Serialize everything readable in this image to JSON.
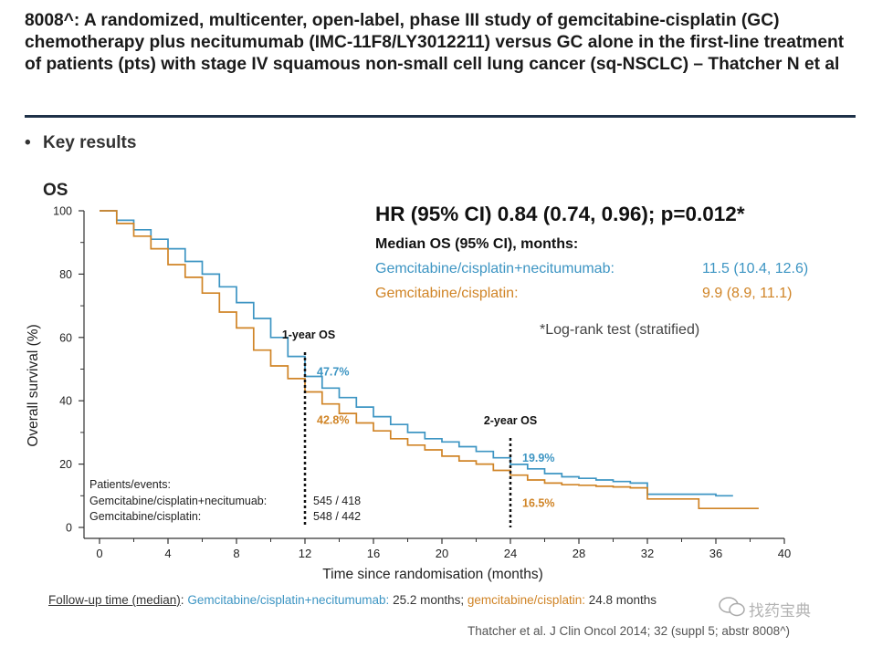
{
  "header": {
    "title": "8008^: A randomized, multicenter, open-label, phase III study of gemcitabine-cisplatin (GC) chemotherapy plus necitumumab (IMC-11F8/LY3012211) versus GC alone in the first-line treatment of patients (pts) with stage IV squamous non-small cell lung cancer (sq-NSCLC) – Thatcher N et al",
    "bullet_symbol": "•",
    "bullet": "Key results"
  },
  "results": {
    "hr": "HR (95% CI) 0.84 (0.74, 0.96); p=0.012*",
    "median_heading": "Median OS (95% CI), months:",
    "arm_a_name": "Gemcitabine/cisplatin+necitumumab:",
    "arm_a_value": "11.5 (10.4, 12.6)",
    "arm_b_name": "Gemcitabine/cisplatin:",
    "arm_b_value": "9.9 (8.9, 11.1)",
    "logrank": "*Log-rank test (stratified)"
  },
  "footer": {
    "follow_label": "Follow-up time (median)",
    "follow_sep": ":",
    "arm_a": "Gemcitabine/cisplatin+necitumumab:",
    "arm_a_value": "25.2 months;",
    "arm_b": "gemcitabine/cisplatin:",
    "arm_b_value": "24.8 months",
    "citation": "Thatcher et al. J Clin Oncol 2014; 32 (suppl 5; abstr 8008^)",
    "watermark": "找药宝典"
  },
  "colors": {
    "arm_a": "#3d95c3",
    "arm_b": "#d08426",
    "rule": "#1e3148"
  },
  "chart_data": {
    "type": "line",
    "title": "OS",
    "xlabel": "Time since randomisation (months)",
    "ylabel": "Overall survival (%)",
    "xlim": [
      0,
      40
    ],
    "ylim": [
      0,
      100
    ],
    "xticks": [
      0,
      4,
      8,
      12,
      16,
      20,
      24,
      28,
      32,
      36,
      40
    ],
    "yticks": [
      0,
      20,
      40,
      60,
      80,
      100
    ],
    "series": [
      {
        "name": "Gemcitabine/cisplatin+necitumumab",
        "color": "#3d95c3",
        "x": [
          0,
          1,
          2,
          3,
          4,
          5,
          6,
          7,
          8,
          9,
          10,
          11,
          12,
          13,
          14,
          15,
          16,
          17,
          18,
          19,
          20,
          21,
          22,
          23,
          24,
          25,
          26,
          27,
          28,
          29,
          30,
          31,
          32,
          34,
          36,
          37
        ],
        "y": [
          100,
          97,
          94,
          91,
          88,
          84,
          80,
          76,
          71,
          66,
          60,
          54,
          47.7,
          44,
          41,
          38,
          35,
          32.5,
          30,
          28,
          27,
          25.5,
          24,
          22,
          19.9,
          18.5,
          17,
          16,
          15.5,
          15,
          14.5,
          14,
          10.5,
          10.5,
          10,
          10
        ]
      },
      {
        "name": "Gemcitabine/cisplatin",
        "color": "#d08426",
        "x": [
          0,
          1,
          2,
          3,
          4,
          5,
          6,
          7,
          8,
          9,
          10,
          11,
          12,
          13,
          14,
          15,
          16,
          17,
          18,
          19,
          20,
          21,
          22,
          23,
          24,
          25,
          26,
          27,
          28,
          29,
          30,
          31,
          32,
          34,
          35,
          36,
          38.5
        ],
        "y": [
          100,
          96,
          92,
          88,
          83,
          79,
          74,
          68,
          63,
          56,
          51,
          47,
          42.8,
          39,
          36,
          33,
          30.5,
          28,
          26,
          24.5,
          22.5,
          21,
          20,
          18,
          16.5,
          15,
          14,
          13.5,
          13.3,
          13,
          12.8,
          12.5,
          9,
          9,
          6,
          6,
          6
        ]
      }
    ],
    "markers": [
      {
        "label": "1-year OS",
        "x": 12,
        "labels": [
          {
            "text": "47.7%",
            "y": 47.7,
            "series": 0
          },
          {
            "text": "42.8%",
            "y": 42.8,
            "series": 1
          }
        ]
      },
      {
        "label": "2-year OS",
        "x": 24,
        "labels": [
          {
            "text": "19.9%",
            "y": 19.9,
            "series": 0
          },
          {
            "text": "16.5%",
            "y": 16.5,
            "series": 1
          }
        ]
      }
    ],
    "patients_table": {
      "heading": "Patients/events:",
      "rows": [
        {
          "arm": "Gemcitabine/cisplatin+necitumuab:",
          "value": "545 / 418"
        },
        {
          "arm": "Gemcitabine/cisplatin:",
          "value": "548 / 442"
        }
      ]
    }
  }
}
